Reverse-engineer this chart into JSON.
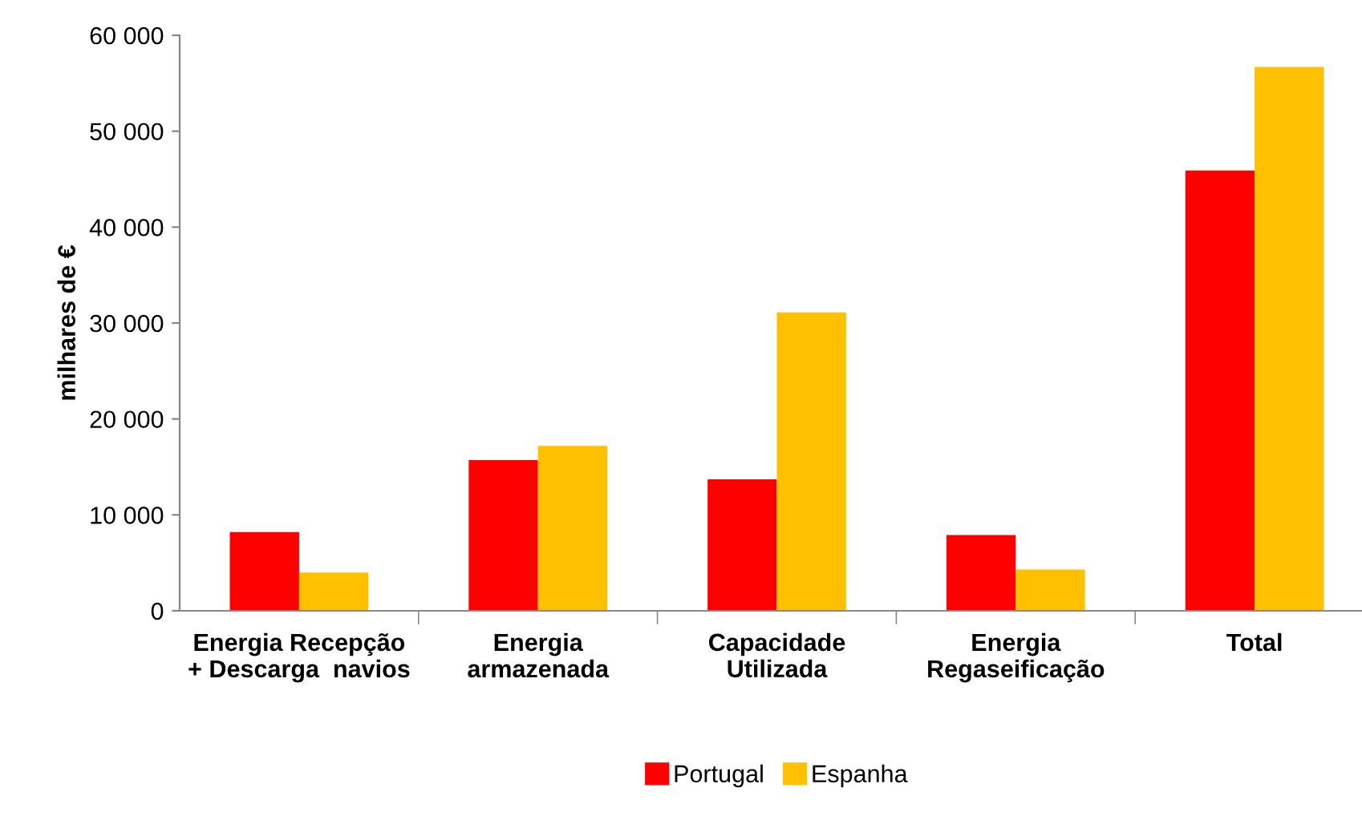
{
  "chart_data": {
    "type": "bar",
    "ylabel": "milhares de €",
    "categories": [
      "Energia Recepção\n+ Descarga  navios",
      "Energia\narmazenada",
      "Capacidade\nUtilizada",
      "Energia\nRegaseificação",
      "Total"
    ],
    "series": [
      {
        "name": "Portugal",
        "color": "#ff0000",
        "values": [
          8200,
          15700,
          13700,
          7900,
          45900
        ]
      },
      {
        "name": "Espanha",
        "color": "#ffc000",
        "values": [
          4000,
          17200,
          31100,
          4300,
          56700
        ]
      }
    ],
    "ylim": [
      0,
      60000
    ],
    "yticks": [
      0,
      {
        "value": 10000,
        "label": "10 000"
      },
      {
        "value": 20000,
        "label": "20 000"
      },
      {
        "value": 30000,
        "label": "30 000"
      },
      {
        "value": 40000,
        "label": "40 000"
      },
      {
        "value": 50000,
        "label": "50 000"
      },
      {
        "value": 60000,
        "label": "60 000"
      }
    ],
    "grid": false,
    "legend": "bottom"
  }
}
